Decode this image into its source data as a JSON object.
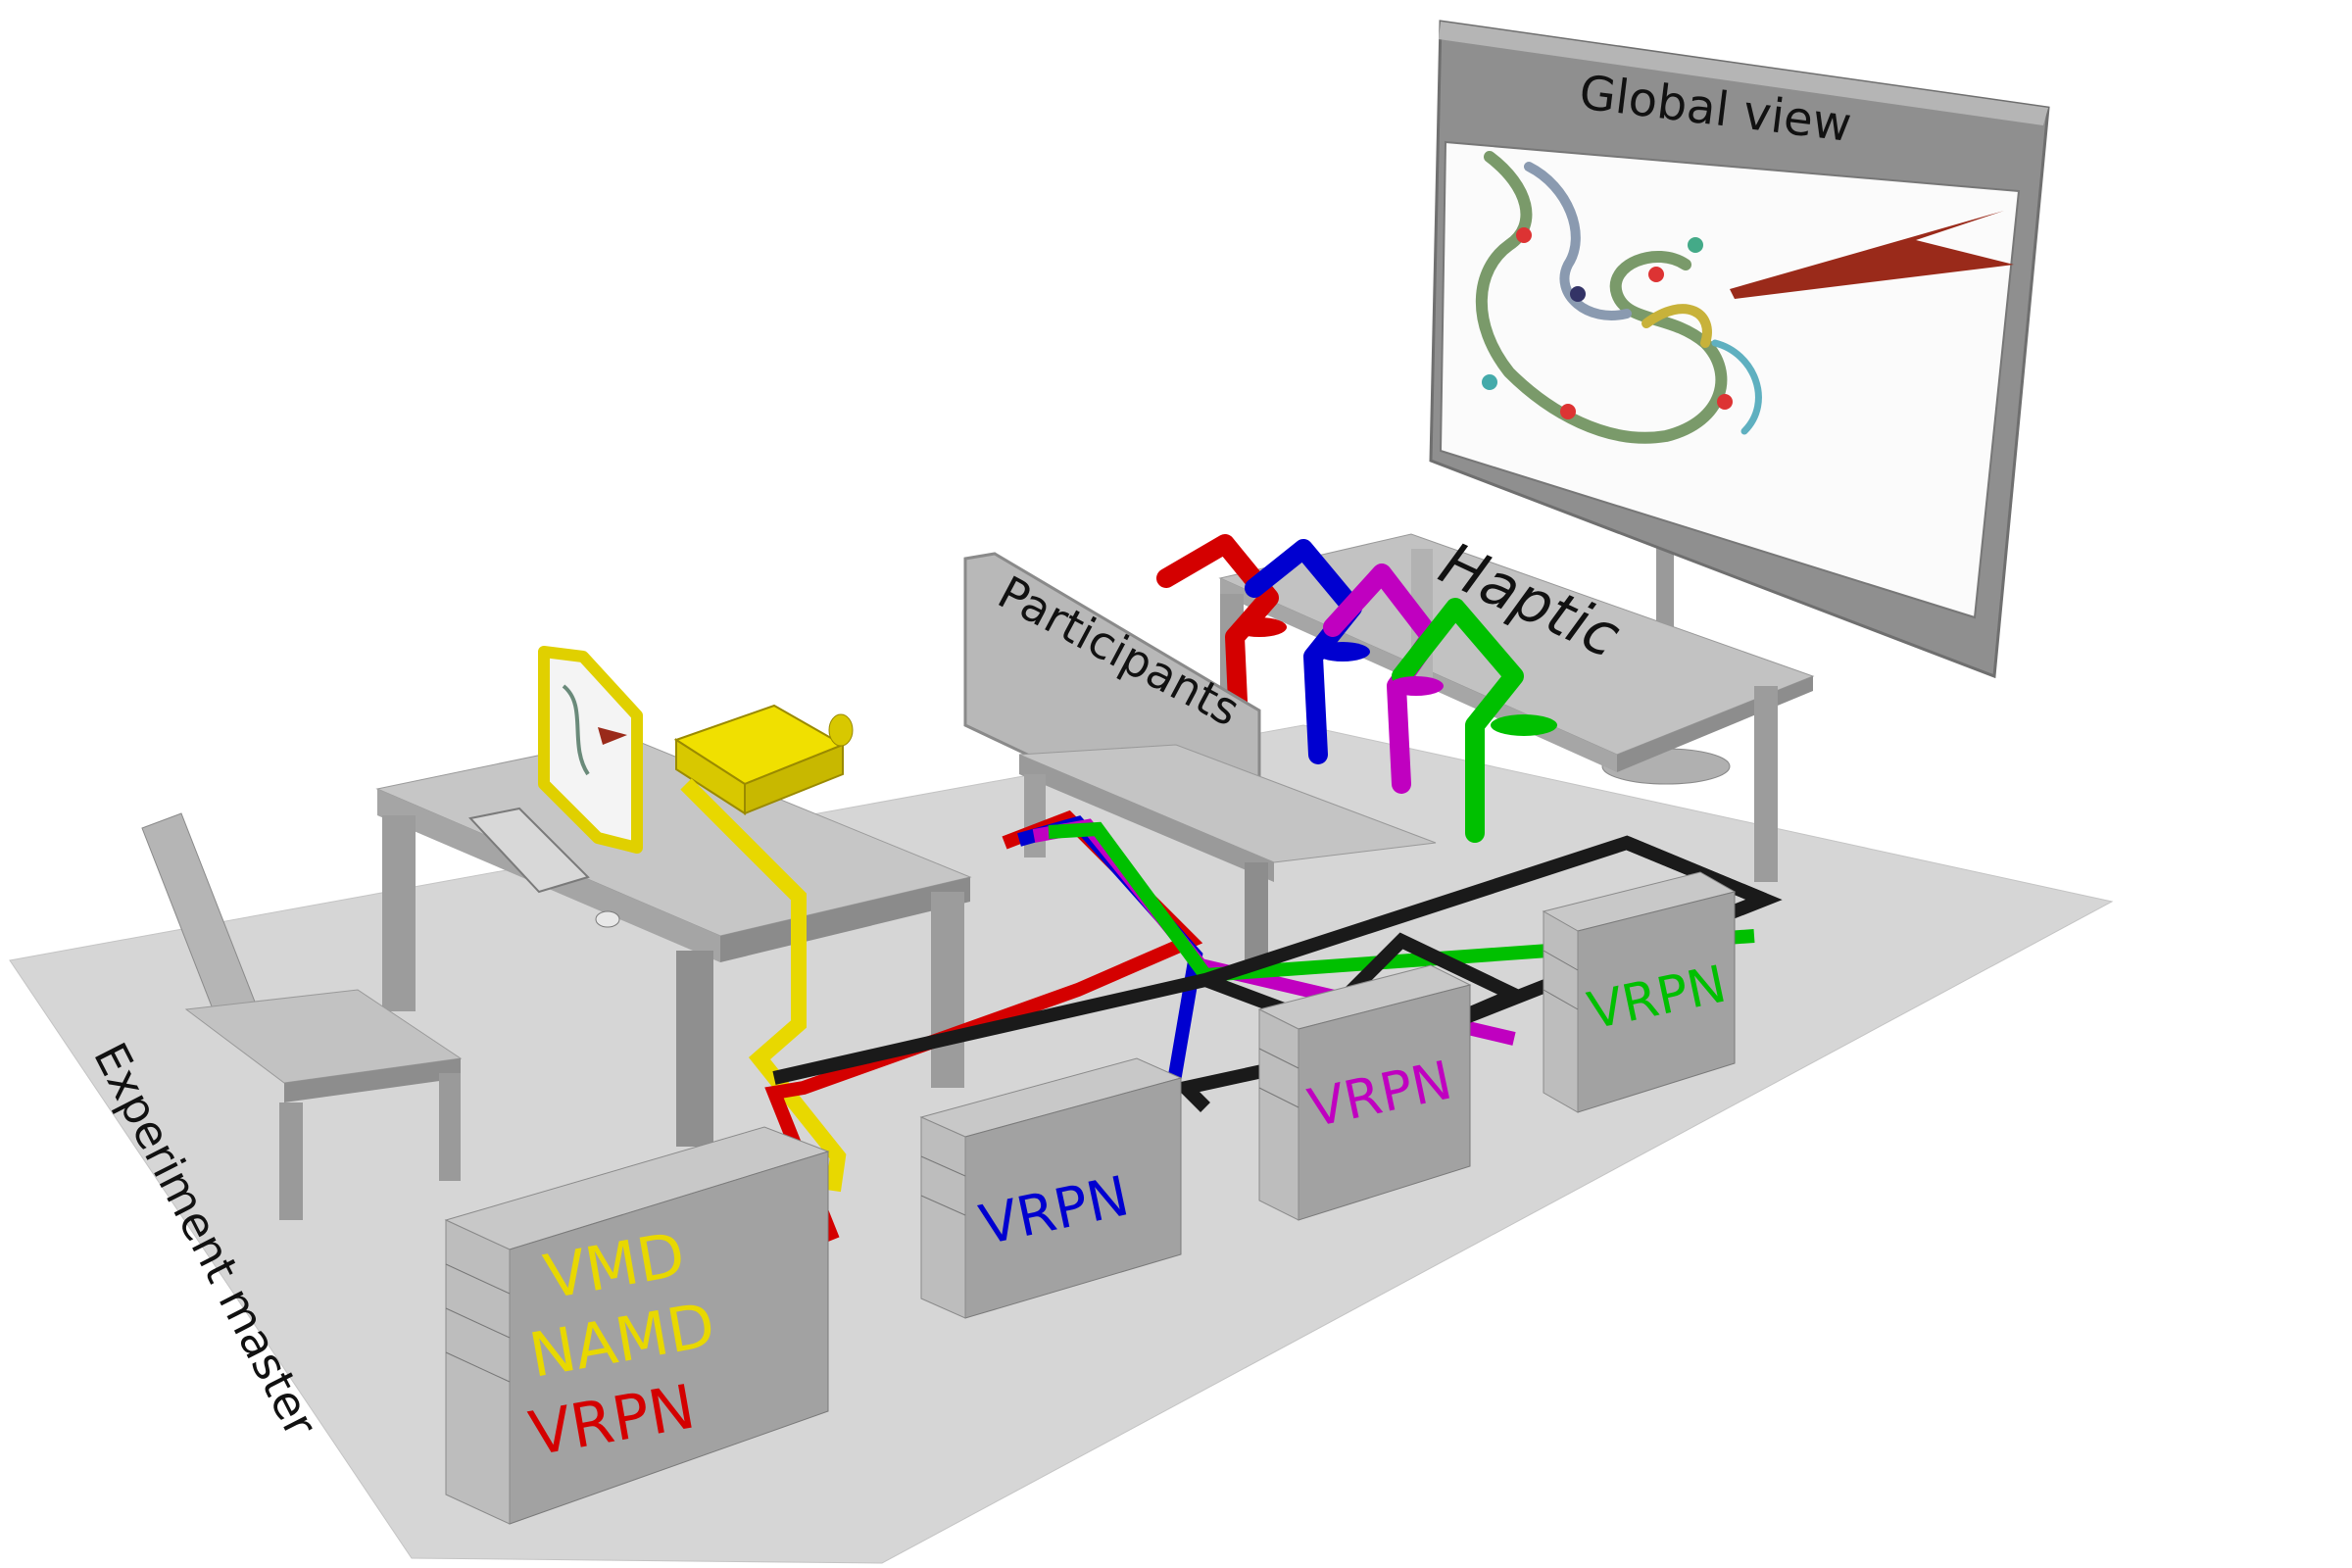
{
  "labels": {
    "global_view": "Global view",
    "haptic": "Haptic",
    "participants": "Participants",
    "experiment_master": "Experiment master"
  },
  "servers": {
    "master": {
      "line1": "VMD",
      "line2": "NAMD",
      "line3": "VRPN"
    },
    "blue": "VRPN",
    "magenta": "VRPN",
    "green": "VRPN"
  },
  "colors": {
    "yellow": "#e8d800",
    "red": "#d40000",
    "blue": "#0000d0",
    "magenta": "#c000c0",
    "green": "#00c000",
    "black": "#1a1a1a",
    "gray": "#a6a6a6",
    "floor": "#d9d9d9"
  }
}
